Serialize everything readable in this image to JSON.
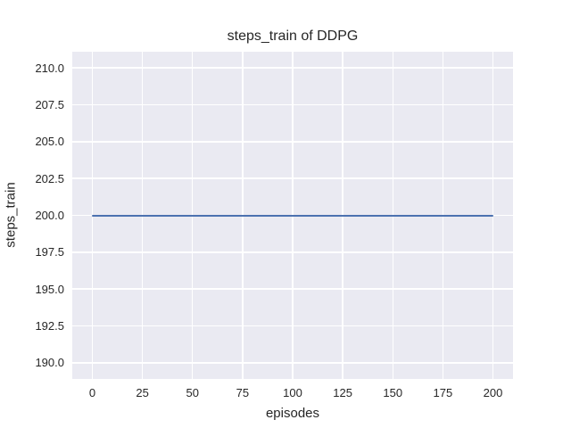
{
  "colors": {
    "figure_background": "#ffffff",
    "axes_background": "#eaeaf2",
    "grid": "#ffffff",
    "text": "#262626",
    "line": "#4c72b0"
  },
  "chart_data": {
    "type": "line",
    "title": "steps_train of DDPG",
    "xlabel": "episodes",
    "ylabel": "steps_train",
    "xlim": [
      -10,
      210
    ],
    "ylim": [
      188.9,
      211.1
    ],
    "x_ticks": [
      0,
      25,
      50,
      75,
      100,
      125,
      150,
      175,
      200
    ],
    "x_tick_labels": [
      "0",
      "25",
      "50",
      "75",
      "100",
      "125",
      "150",
      "175",
      "200"
    ],
    "y_ticks": [
      190.0,
      192.5,
      195.0,
      197.5,
      200.0,
      202.5,
      205.0,
      207.5,
      210.0
    ],
    "y_tick_labels": [
      "190.0",
      "192.5",
      "195.0",
      "197.5",
      "200.0",
      "202.5",
      "205.0",
      "207.5",
      "210.0"
    ],
    "grid": true,
    "legend": false,
    "style": "seaborn-darkgrid",
    "series": [
      {
        "name": "steps_train",
        "color": "#4c72b0",
        "x": [
          0,
          200
        ],
        "y": [
          200,
          200
        ]
      }
    ]
  }
}
